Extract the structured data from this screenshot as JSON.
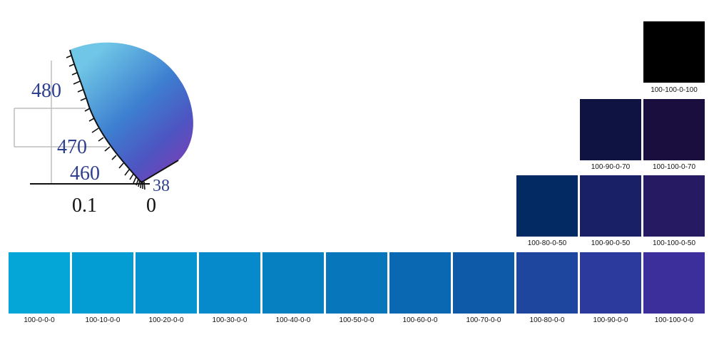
{
  "diagram": {
    "tick_labels": {
      "wl_480": "480",
      "wl_470": "470",
      "wl_460": "460",
      "wl_380": "38",
      "x_01": "0.1",
      "x_0": "0"
    },
    "gamut_colors": [
      "#6fc6e6",
      "#3d7fd0",
      "#4d55c2",
      "#7a3fb5"
    ]
  },
  "swatches": [
    {
      "label": "100-100-0-100",
      "color": "#000000"
    },
    {
      "label": "100-90-0-70",
      "color": "#0f1342"
    },
    {
      "label": "100-100-0-70",
      "color": "#1a0e3f"
    },
    {
      "label": "100-80-0-50",
      "color": "#042a63"
    },
    {
      "label": "100-90-0-50",
      "color": "#1a2065"
    },
    {
      "label": "100-100-0-50",
      "color": "#261a62"
    },
    {
      "label": "100-0-0-0",
      "color": "#04a6d8"
    },
    {
      "label": "100-10-0-0",
      "color": "#039dd4"
    },
    {
      "label": "100-20-0-0",
      "color": "#0594cf"
    },
    {
      "label": "100-30-0-0",
      "color": "#068acb"
    },
    {
      "label": "100-40-0-0",
      "color": "#0780c2"
    },
    {
      "label": "100-50-0-0",
      "color": "#0876bb"
    },
    {
      "label": "100-60-0-0",
      "color": "#0a68b2"
    },
    {
      "label": "100-70-0-0",
      "color": "#0f5aa8"
    },
    {
      "label": "100-80-0-0",
      "color": "#1f469f"
    },
    {
      "label": "100-90-0-0",
      "color": "#2d3a9d"
    },
    {
      "label": "100-100-0-0",
      "color": "#3d2f9b"
    }
  ]
}
